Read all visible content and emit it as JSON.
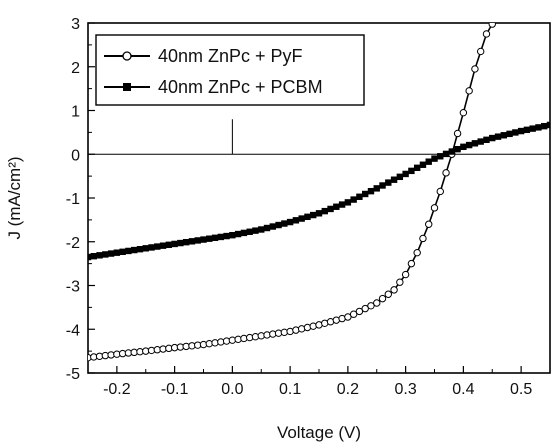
{
  "chart_data": {
    "type": "line",
    "xlabel": "Voltage (V)",
    "ylabel": "J (mA/cm²)",
    "xlim": [
      -0.25,
      0.55
    ],
    "ylim": [
      -5,
      3
    ],
    "x_ticks": [
      "-0.2",
      "-0.1",
      "0.0",
      "0.1",
      "0.2",
      "0.3",
      "0.4",
      "0.5"
    ],
    "y_ticks": [
      "-5",
      "-4",
      "-3",
      "-2",
      "-1",
      "0",
      "1",
      "2",
      "3"
    ],
    "grid": false,
    "reference_lines": {
      "x": 0,
      "y": 0
    },
    "legend_position": "top-left",
    "series": [
      {
        "name": "40nm ZnPc + PyF",
        "marker": "open-circle",
        "color": "#000000",
        "x": [
          -0.25,
          -0.2,
          -0.15,
          -0.1,
          -0.05,
          0.0,
          0.05,
          0.1,
          0.15,
          0.2,
          0.25,
          0.28,
          0.3,
          0.32,
          0.34,
          0.36,
          0.38,
          0.4,
          0.42,
          0.44,
          0.46
        ],
        "y": [
          -4.65,
          -4.57,
          -4.5,
          -4.42,
          -4.35,
          -4.25,
          -4.15,
          -4.05,
          -3.9,
          -3.72,
          -3.4,
          -3.1,
          -2.75,
          -2.25,
          -1.6,
          -0.85,
          0.0,
          0.95,
          1.95,
          2.75,
          3.2
        ]
      },
      {
        "name": "40nm ZnPc + PCBM",
        "marker": "filled-square",
        "color": "#000000",
        "x": [
          -0.25,
          -0.2,
          -0.15,
          -0.1,
          -0.05,
          0.0,
          0.05,
          0.1,
          0.15,
          0.2,
          0.25,
          0.3,
          0.35,
          0.4,
          0.45,
          0.5,
          0.55
        ],
        "y": [
          -2.35,
          -2.25,
          -2.15,
          -2.05,
          -1.95,
          -1.85,
          -1.72,
          -1.55,
          -1.35,
          -1.1,
          -0.78,
          -0.45,
          -0.1,
          0.17,
          0.37,
          0.53,
          0.67
        ]
      }
    ]
  }
}
